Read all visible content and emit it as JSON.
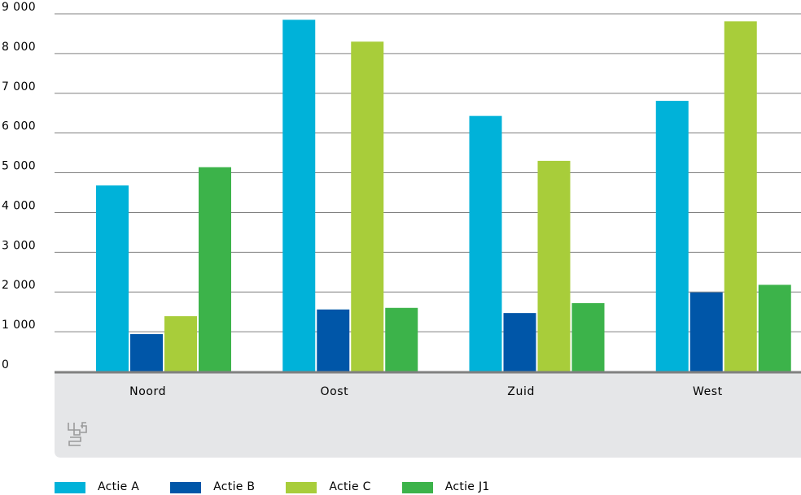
{
  "chart_data": {
    "type": "bar",
    "title": "",
    "xlabel": "",
    "ylabel": "",
    "categories": [
      "Noord",
      "Oost",
      "Zuid",
      "West"
    ],
    "series": [
      {
        "name": "Actie A",
        "color": "#00b2d9",
        "values": [
          4680,
          8850,
          6430,
          6810
        ]
      },
      {
        "name": "Actie B",
        "color": "#0056a8",
        "values": [
          940,
          1560,
          1470,
          1990
        ]
      },
      {
        "name": "Actie C",
        "color": "#a8cd3a",
        "values": [
          1390,
          8300,
          5300,
          8810
        ]
      },
      {
        "name": "Actie J1",
        "color": "#3cb34a",
        "values": [
          5140,
          1600,
          1720,
          2180
        ]
      }
    ],
    "ylim": [
      0,
      9000
    ],
    "yticks": [
      0,
      1000,
      2000,
      3000,
      4000,
      5000,
      6000,
      7000,
      8000,
      9000
    ],
    "ytick_labels": [
      "0",
      "1 000",
      "2 000",
      "3 000",
      "4 000",
      "5 000",
      "6 000",
      "7 000",
      "8 000",
      "9 000"
    ],
    "grid": true,
    "legend_position": "bottom-left"
  },
  "logo": {
    "icon": "cbs-logo-icon",
    "color": "#9a9a9a"
  },
  "colors": {
    "axis": "#808080",
    "grid": "#808080",
    "band": "#e5e6e8"
  }
}
